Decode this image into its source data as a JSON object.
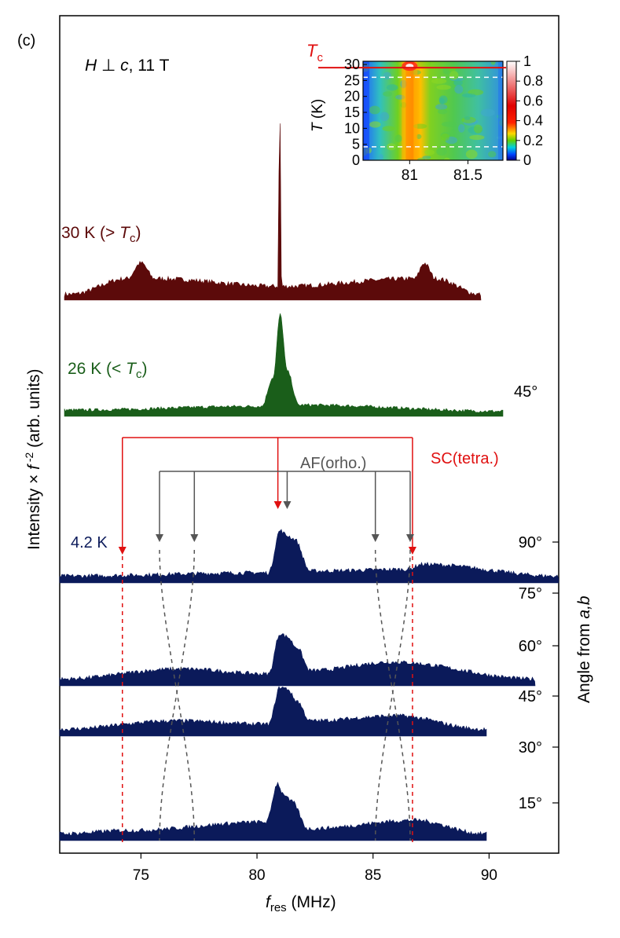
{
  "panel_label": "(c)",
  "condition": {
    "H": "H",
    "perp": " ⊥ ",
    "c": "c",
    "rest": ", 11 T"
  },
  "ylabel": {
    "main": "Intensity × ",
    "f": "f",
    "exp": " -2",
    "units": " (arb. units)"
  },
  "xlabel": {
    "f": "f",
    "sub": "res",
    "units": " (MHz)"
  },
  "right_label": "Angle from a,b",
  "right_label_parts": {
    "pre": "Angle from ",
    "ab": "a,b"
  },
  "colors": {
    "t30": "#5c0a0a",
    "t26": "#1a5e1a",
    "t42": "#0b1a5a",
    "red": "#e01010",
    "gray": "#555555"
  },
  "chart_data": [
    {
      "type": "area",
      "title": "",
      "xlabel": "f_res (MHz)",
      "ylabel": "Intensity × f -2 (arb. units)",
      "xlim": [
        71.5,
        93
      ],
      "xticks": [
        75,
        80,
        85,
        90
      ],
      "xtick_labels": [
        "75",
        "80",
        "85",
        "90"
      ],
      "series": [
        {
          "name": "30 K (> Tc)",
          "label_main": "30 K (> ",
          "label_T": "T",
          "label_sub": "c",
          "label_close": ")",
          "color": "#5c0a0a",
          "x": [
            72.0,
            74.4,
            75.0,
            75.6,
            80.9,
            80.98,
            81.06,
            86.8,
            87.2,
            87.7,
            89.6
          ],
          "y": [
            0.02,
            0.1,
            0.18,
            0.1,
            0.06,
            1.0,
            0.06,
            0.1,
            0.18,
            0.1,
            0.02
          ]
        },
        {
          "name": "26 K (< Tc)",
          "label_main": "26 K (< ",
          "label_T": "T",
          "label_sub": "c",
          "label_close": ")",
          "color": "#1a5e1a",
          "x": [
            72.0,
            80.2,
            80.7,
            81.0,
            81.3,
            81.8,
            90.8
          ],
          "y": [
            0.04,
            0.07,
            0.3,
            0.8,
            0.35,
            0.08,
            0.03
          ]
        },
        {
          "name": "4.2 K, 90°",
          "label_main": "4.2 K",
          "angle": "90°",
          "color": "#0b1a5a",
          "x": [
            71.5,
            80.5,
            81.0,
            81.3,
            81.6,
            82.3,
            86.5,
            87.1,
            93.0
          ],
          "y": [
            0.03,
            0.05,
            0.3,
            0.27,
            0.25,
            0.06,
            0.07,
            0.1,
            0.03
          ]
        },
        {
          "name": "4.2 K, 60°",
          "angle": "60°",
          "color": "#0b1a5a",
          "x": [
            71.5,
            76.7,
            80.5,
            81.0,
            81.3,
            81.7,
            82.3,
            85.8,
            92.0
          ],
          "y": [
            0.03,
            0.09,
            0.06,
            0.3,
            0.28,
            0.22,
            0.08,
            0.13,
            0.03
          ]
        },
        {
          "name": "4.2 K, 45°",
          "angle": "45°",
          "color": "#0b1a5a",
          "x": [
            71.5,
            76.5,
            80.5,
            81.0,
            81.3,
            81.7,
            82.3,
            86.0,
            89.8
          ],
          "y": [
            0.03,
            0.08,
            0.06,
            0.28,
            0.27,
            0.2,
            0.08,
            0.11,
            0.03
          ]
        },
        {
          "name": "4.2 K, 15°",
          "angle": "15°",
          "color": "#0b1a5a",
          "x": [
            71.5,
            74.5,
            80.4,
            80.9,
            81.1,
            81.5,
            82.2,
            86.8,
            89.8
          ],
          "y": [
            0.03,
            0.05,
            0.1,
            0.33,
            0.27,
            0.22,
            0.06,
            0.11,
            0.03
          ]
        }
      ],
      "angle_axis": {
        "label": "Angle from a,b",
        "ticks": [
          "90°",
          "75°",
          "60°",
          "45°",
          "30°",
          "15°"
        ]
      },
      "annotations": {
        "sc_label": "SC(tetra.)",
        "sc_lines": [
          74.2,
          80.9,
          86.7
        ],
        "af_label": "AF(orho.)",
        "af_lines": [
          75.8,
          77.3,
          81.3,
          85.1,
          86.6
        ],
        "extra_angle": "45°"
      }
    },
    {
      "type": "heatmap",
      "title": "",
      "xlabel": "",
      "ylabel": "T (K)",
      "ylabel_parts": {
        "T": "T",
        "rest": " (K)"
      },
      "xlim": [
        80.6,
        81.8
      ],
      "xticks": [
        81,
        81.5
      ],
      "xtick_labels": [
        "81",
        "81.5"
      ],
      "ylim": [
        0,
        31
      ],
      "yticks": [
        0,
        5,
        10,
        15,
        20,
        25,
        30
      ],
      "ytick_labels": [
        "0",
        "5",
        "10",
        "15",
        "20",
        "25",
        "30"
      ],
      "colorbar_ticks": [
        0,
        0.2,
        0.4,
        0.6,
        0.8,
        1
      ],
      "colorbar_labels": [
        "0",
        "0.2",
        "0.4",
        "0.6",
        "0.8",
        "1"
      ],
      "tc_label": "T",
      "tc_sub": "c",
      "tc_value": 29,
      "dashed_T": [
        4.2,
        26,
        30
      ],
      "peak_center": 81.0
    }
  ]
}
